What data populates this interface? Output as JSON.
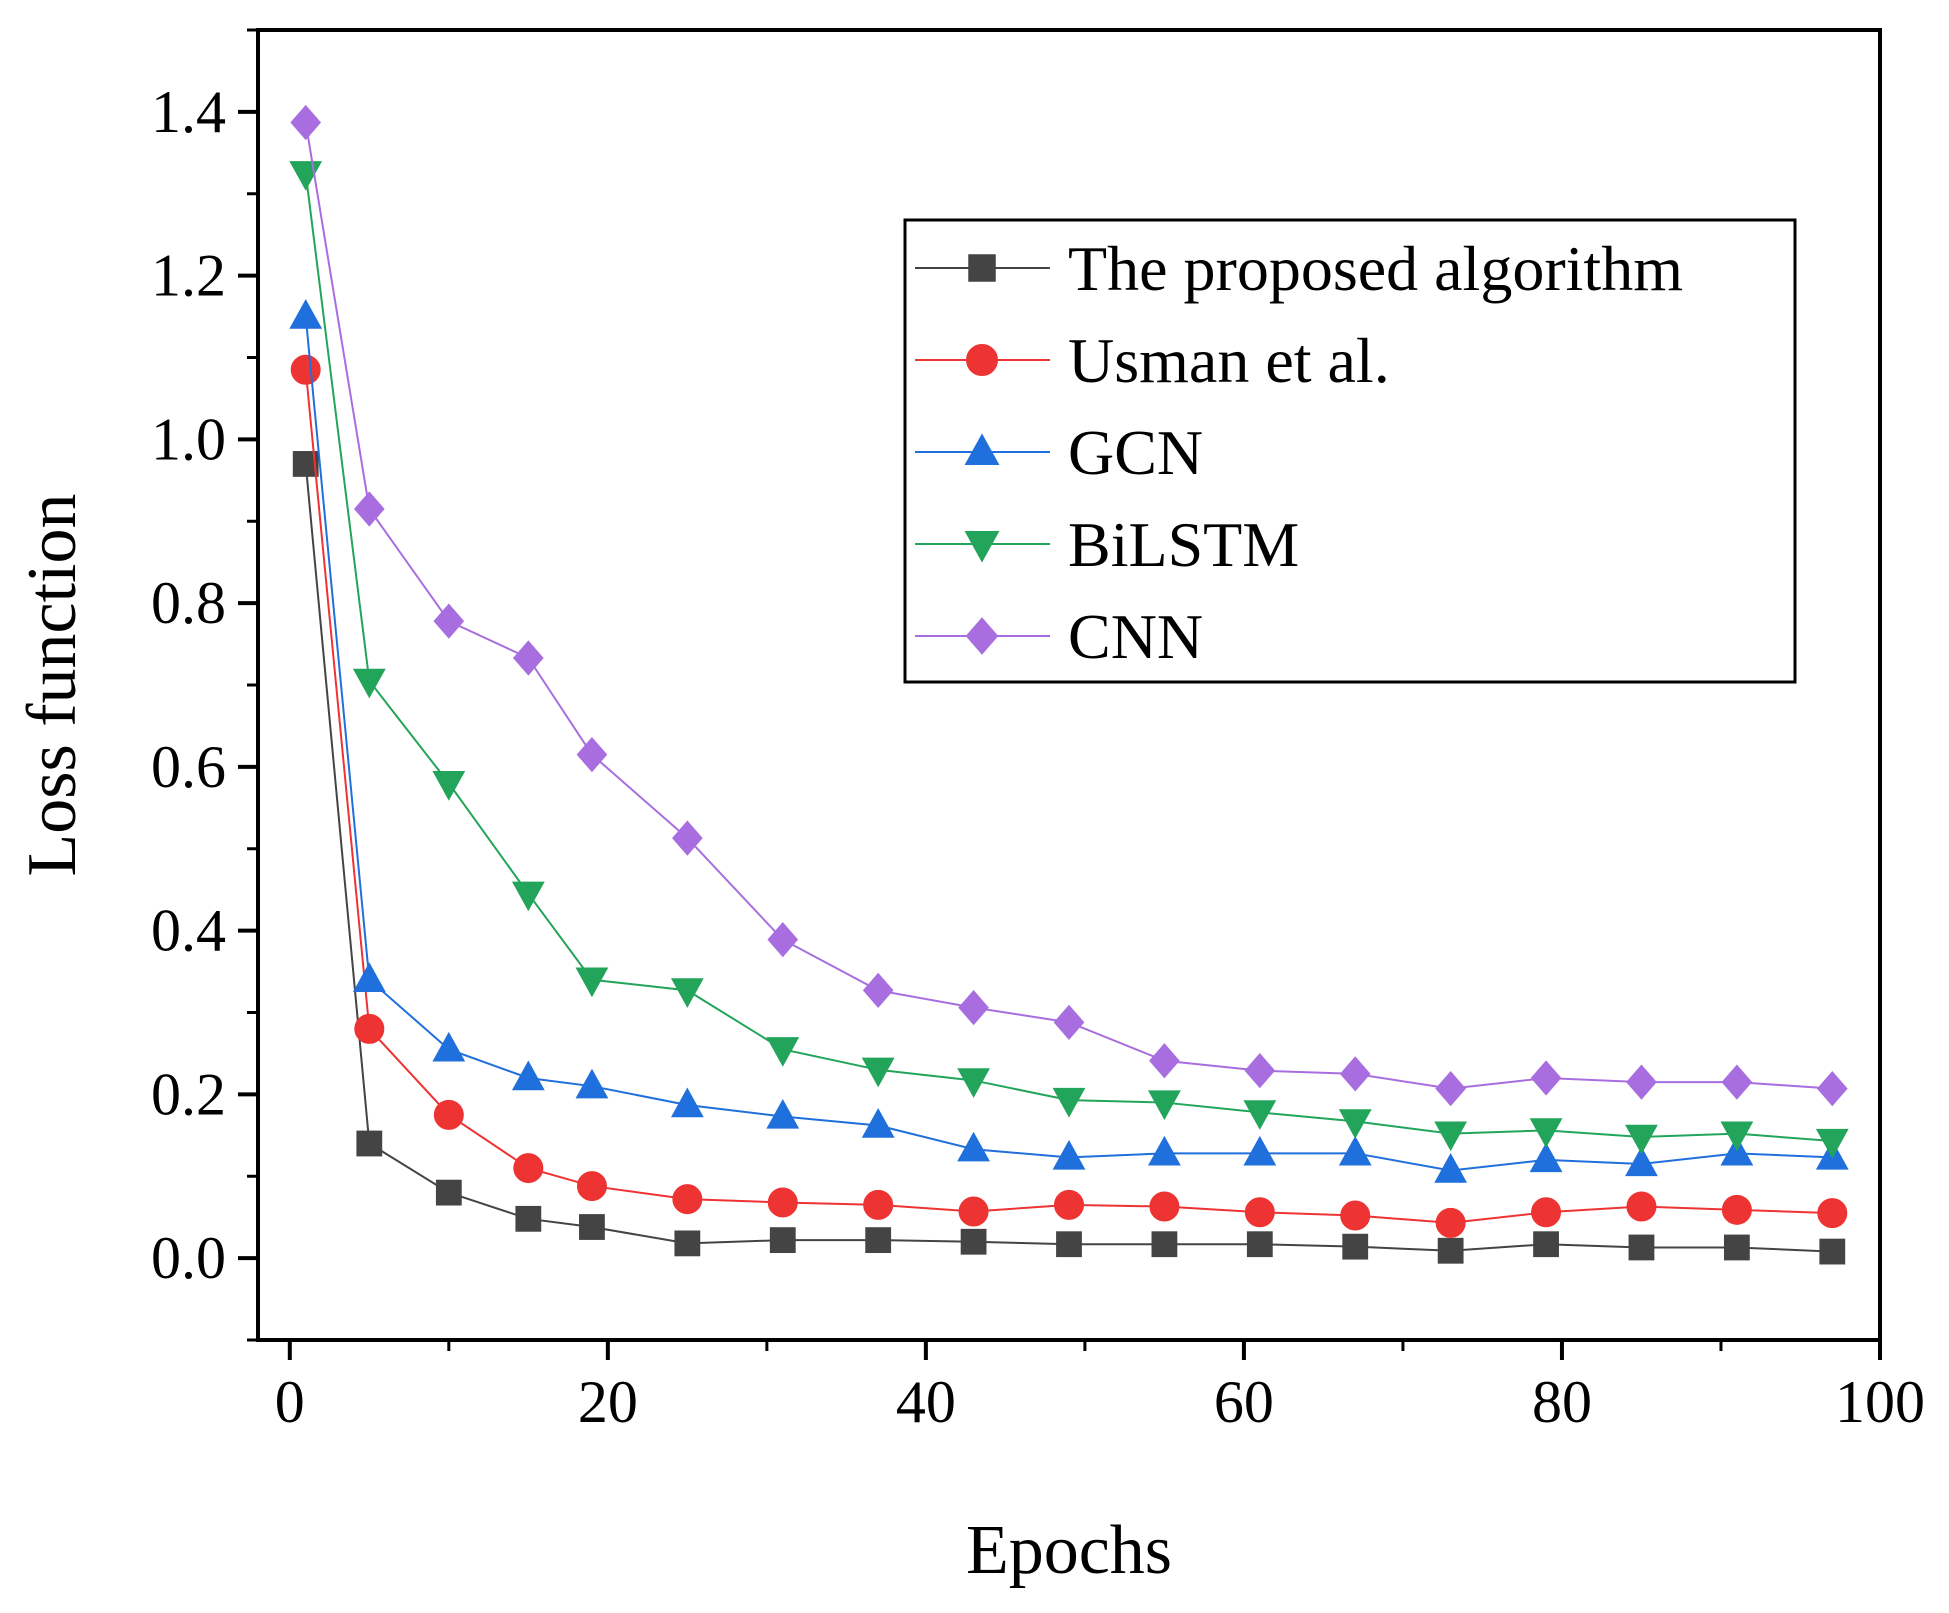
{
  "chart_data": {
    "type": "line",
    "title": "",
    "xlabel": "Epochs",
    "ylabel": "Loss function",
    "xlim": [
      -2,
      100
    ],
    "ylim": [
      -0.1,
      1.5
    ],
    "xticks": [
      0,
      20,
      40,
      60,
      80,
      100
    ],
    "xtick_labels": [
      "0",
      "20",
      "40",
      "60",
      "80",
      "100"
    ],
    "yticks": [
      0.0,
      0.2,
      0.4,
      0.6,
      0.8,
      1.0,
      1.2,
      1.4
    ],
    "ytick_labels": [
      "0.0",
      "0.2",
      "0.4",
      "0.6",
      "0.8",
      "1.0",
      "1.2",
      "1.4"
    ],
    "legend_position": "top-right",
    "x": [
      1,
      5,
      10,
      15,
      19,
      25,
      31,
      37,
      43,
      49,
      55,
      61,
      67,
      73,
      79,
      85,
      91,
      97
    ],
    "series": [
      {
        "name": "The proposed algorithm",
        "color": "#444444",
        "marker": "square",
        "values": [
          0.97,
          0.14,
          0.08,
          0.048,
          0.038,
          0.018,
          0.022,
          0.022,
          0.02,
          0.017,
          0.017,
          0.017,
          0.014,
          0.009,
          0.017,
          0.013,
          0.013,
          0.008
        ]
      },
      {
        "name": "Usman et al.",
        "color": "#ee3333",
        "marker": "circle",
        "values": [
          1.085,
          0.28,
          0.175,
          0.11,
          0.088,
          0.072,
          0.068,
          0.065,
          0.057,
          0.065,
          0.063,
          0.056,
          0.052,
          0.043,
          0.056,
          0.063,
          0.059,
          0.055
        ]
      },
      {
        "name": "GCN",
        "color": "#1f6fdc",
        "marker": "triangle-up",
        "values": [
          1.15,
          0.34,
          0.255,
          0.22,
          0.21,
          0.187,
          0.173,
          0.162,
          0.133,
          0.123,
          0.128,
          0.128,
          0.128,
          0.107,
          0.12,
          0.115,
          0.128,
          0.123
        ]
      },
      {
        "name": "BiLSTM",
        "color": "#22a55a",
        "marker": "triangle-down",
        "values": [
          1.325,
          0.705,
          0.58,
          0.445,
          0.34,
          0.327,
          0.255,
          0.23,
          0.217,
          0.193,
          0.19,
          0.178,
          0.167,
          0.152,
          0.156,
          0.148,
          0.152,
          0.143
        ]
      },
      {
        "name": "CNN",
        "color": "#a86ee0",
        "marker": "diamond",
        "values": [
          1.387,
          0.915,
          0.778,
          0.733,
          0.615,
          0.513,
          0.389,
          0.327,
          0.306,
          0.288,
          0.241,
          0.229,
          0.225,
          0.207,
          0.22,
          0.215,
          0.215,
          0.207
        ]
      }
    ]
  }
}
